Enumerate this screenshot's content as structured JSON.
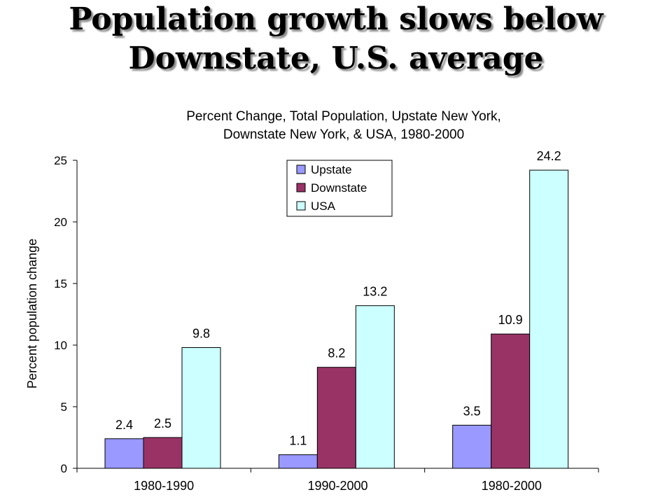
{
  "slide": {
    "title_line1": "Population growth slows below",
    "title_line2": "Downstate, U.S. average"
  },
  "chart_data": {
    "type": "bar",
    "title_line1": "Percent Change, Total Population, Upstate New York,",
    "title_line2": "Downstate New York, & USA, 1980-2000",
    "xlabel": "",
    "ylabel": "Percent population change",
    "ylim": [
      0,
      25
    ],
    "yticks": [
      0,
      5,
      10,
      15,
      20,
      25
    ],
    "categories": [
      "1980-1990",
      "1990-2000",
      "1980-2000"
    ],
    "series": [
      {
        "name": "Upstate",
        "color": "#9999ff",
        "values": [
          2.4,
          1.1,
          3.5
        ],
        "labels": [
          "2.4",
          "1.1",
          "3.5"
        ]
      },
      {
        "name": "Downstate",
        "color": "#993366",
        "values": [
          2.5,
          8.2,
          10.9
        ],
        "labels": [
          "2.5",
          "8.2",
          "10.9"
        ]
      },
      {
        "name": "USA",
        "color": "#ccffff",
        "values": [
          9.8,
          13.2,
          24.2
        ],
        "labels": [
          "9.8",
          "13.2",
          "24.2"
        ]
      }
    ],
    "legend_position": "top-center",
    "grid": false
  }
}
